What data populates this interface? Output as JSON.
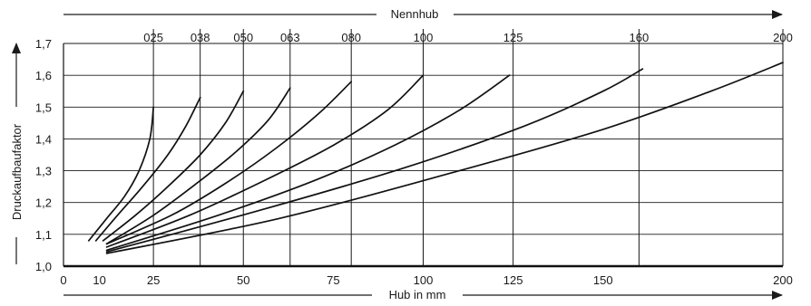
{
  "chart_data": {
    "type": "line",
    "xlabel": "Hub in mm",
    "ylabel": "Druckaufbaufaktor",
    "top_axis_label": "Nennhub",
    "xlim": [
      0,
      200
    ],
    "ylim": [
      1.0,
      1.7
    ],
    "x_ticks": [
      "0",
      "10",
      "25",
      "50",
      "75",
      "100",
      "125",
      "150",
      "200"
    ],
    "x_tick_values": [
      0,
      10,
      25,
      50,
      75,
      100,
      125,
      150,
      200
    ],
    "y_ticks": [
      "1,0",
      "1,1",
      "1,2",
      "1,3",
      "1,4",
      "1,5",
      "1,6",
      "1,7"
    ],
    "y_tick_values": [
      1.0,
      1.1,
      1.2,
      1.3,
      1.4,
      1.5,
      1.6,
      1.7
    ],
    "grid": true,
    "series": [
      {
        "name": "025",
        "nominal": 25,
        "points": [
          [
            7,
            1.08
          ],
          [
            12,
            1.15
          ],
          [
            17,
            1.22
          ],
          [
            21,
            1.3
          ],
          [
            24,
            1.4
          ],
          [
            25,
            1.5
          ]
        ]
      },
      {
        "name": "038",
        "nominal": 38,
        "points": [
          [
            9,
            1.08
          ],
          [
            15,
            1.16
          ],
          [
            22,
            1.25
          ],
          [
            29,
            1.35
          ],
          [
            34,
            1.44
          ],
          [
            38,
            1.53
          ]
        ]
      },
      {
        "name": "050",
        "nominal": 50,
        "points": [
          [
            11,
            1.08
          ],
          [
            20,
            1.16
          ],
          [
            29,
            1.25
          ],
          [
            38,
            1.35
          ],
          [
            45,
            1.45
          ],
          [
            50,
            1.55
          ]
        ]
      },
      {
        "name": "063",
        "nominal": 63,
        "points": [
          [
            12,
            1.07
          ],
          [
            25,
            1.16
          ],
          [
            37,
            1.26
          ],
          [
            48,
            1.36
          ],
          [
            57,
            1.46
          ],
          [
            63,
            1.56
          ]
        ]
      },
      {
        "name": "080",
        "nominal": 80,
        "points": [
          [
            12,
            1.07
          ],
          [
            30,
            1.16
          ],
          [
            45,
            1.26
          ],
          [
            59,
            1.37
          ],
          [
            71,
            1.48
          ],
          [
            80,
            1.58
          ]
        ]
      },
      {
        "name": "100",
        "nominal": 100,
        "points": [
          [
            12,
            1.06
          ],
          [
            35,
            1.16
          ],
          [
            56,
            1.27
          ],
          [
            75,
            1.38
          ],
          [
            90,
            1.49
          ],
          [
            100,
            1.6
          ]
        ]
      },
      {
        "name": "125",
        "nominal": 125,
        "points": [
          [
            12,
            1.05
          ],
          [
            43,
            1.16
          ],
          [
            70,
            1.27
          ],
          [
            92,
            1.38
          ],
          [
            110,
            1.49
          ],
          [
            124,
            1.6
          ]
        ]
      },
      {
        "name": "160",
        "nominal": 160,
        "points": [
          [
            12,
            1.045
          ],
          [
            56,
            1.18
          ],
          [
            95,
            1.31
          ],
          [
            128,
            1.44
          ],
          [
            150,
            1.55
          ],
          [
            161,
            1.62
          ]
        ]
      },
      {
        "name": "200",
        "nominal": 200,
        "points": [
          [
            12,
            1.04
          ],
          [
            60,
            1.15
          ],
          [
            110,
            1.3
          ],
          [
            150,
            1.43
          ],
          [
            180,
            1.55
          ],
          [
            200,
            1.64
          ]
        ]
      }
    ]
  }
}
